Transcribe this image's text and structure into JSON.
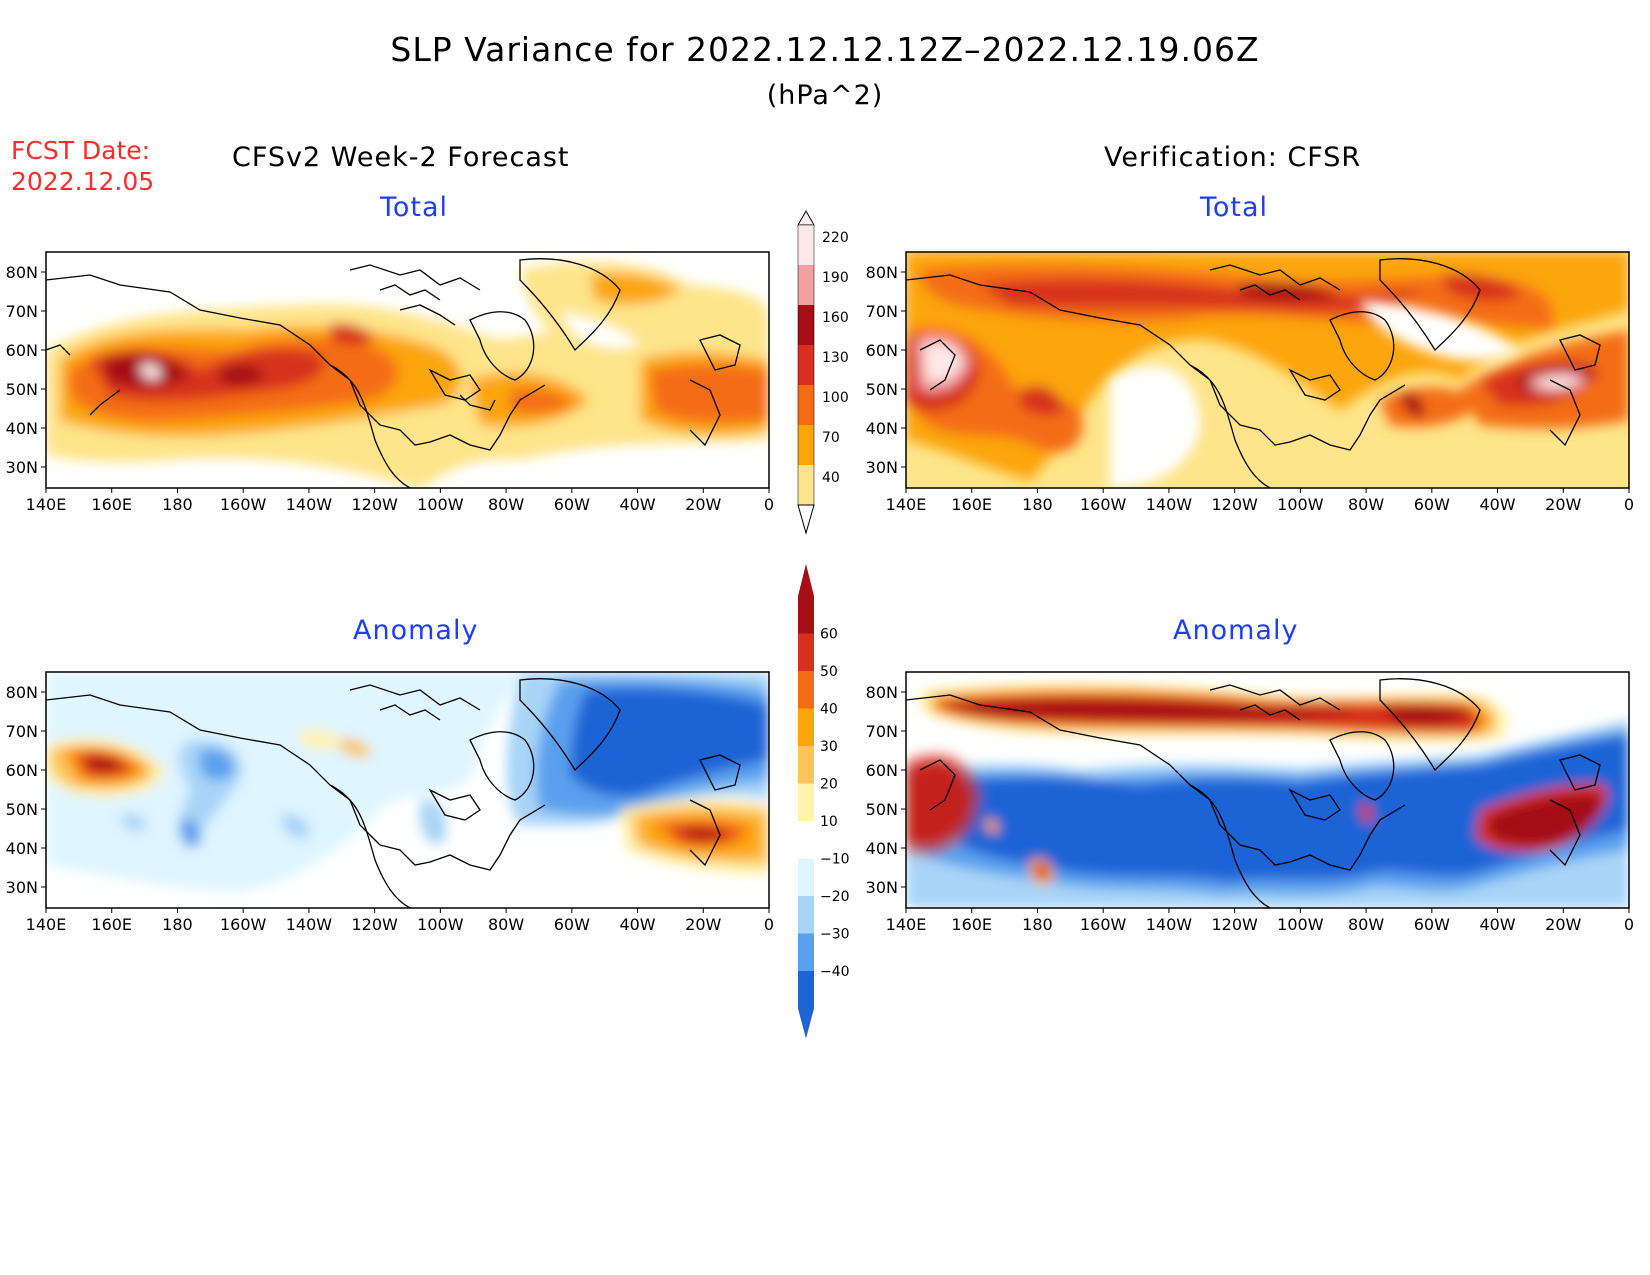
{
  "header": {
    "title": "SLP Variance for 2022.12.12.12Z–2022.12.19.06Z",
    "units": "(hPa^2)",
    "fcst_line1": "FCST Date:",
    "fcst_line2": "2022.12.05",
    "left_subtitle": "CFSv2 Week-2 Forecast",
    "right_subtitle": "Verification: CFSR"
  },
  "panels": {
    "tl_label": "Total",
    "tr_label": "Total",
    "bl_label": "Anomaly",
    "br_label": "Anomaly"
  },
  "axes": {
    "lat_labels": [
      "80N",
      "70N",
      "60N",
      "50N",
      "40N",
      "30N"
    ],
    "lon_labels": [
      "140E",
      "160E",
      "180",
      "160W",
      "140W",
      "120W",
      "100W",
      "80W",
      "60W",
      "40W",
      "20W",
      "0"
    ]
  },
  "colorbars": {
    "total": {
      "levels": [
        "220",
        "190",
        "160",
        "130",
        "100",
        "70",
        "40"
      ],
      "colors": [
        "#fde8e8",
        "#f2a0a0",
        "#a50f15",
        "#d7301f",
        "#f46d13",
        "#fca50a",
        "#fee48a"
      ]
    },
    "anomaly": {
      "levels": [
        "60",
        "50",
        "40",
        "30",
        "20",
        "10",
        "−10",
        "−20",
        "−30",
        "−40"
      ],
      "colors": [
        "#a50f15",
        "#d7301f",
        "#f46d13",
        "#fca50a",
        "#fdc45c",
        "#fff3b0",
        "#ffffff",
        "#dff5ff",
        "#a8d4f7",
        "#5aa0ee",
        "#1f64d6"
      ]
    }
  },
  "chart_data": {
    "type": "heatmap",
    "title": "SLP Variance for 2022.12.12.12Z–2022.12.19.06Z",
    "units": "hPa^2",
    "x_axis": [
      "140E",
      "160E",
      "180",
      "160W",
      "140W",
      "120W",
      "100W",
      "80W",
      "60W",
      "40W",
      "20W",
      "0"
    ],
    "y_axis": [
      "30N",
      "40N",
      "50N",
      "60N",
      "70N",
      "80N"
    ],
    "panels": [
      {
        "name": "CFSv2 Week-2 Forecast Total",
        "colorbar": "total",
        "range": [
          40,
          220
        ]
      },
      {
        "name": "Verification: CFSR Total",
        "colorbar": "total",
        "range": [
          40,
          220
        ]
      },
      {
        "name": "CFSv2 Week-2 Forecast Anomaly",
        "colorbar": "anomaly",
        "range": [
          -40,
          60
        ]
      },
      {
        "name": "Verification: CFSR Anomaly",
        "colorbar": "anomaly",
        "range": [
          -40,
          60
        ]
      }
    ]
  }
}
